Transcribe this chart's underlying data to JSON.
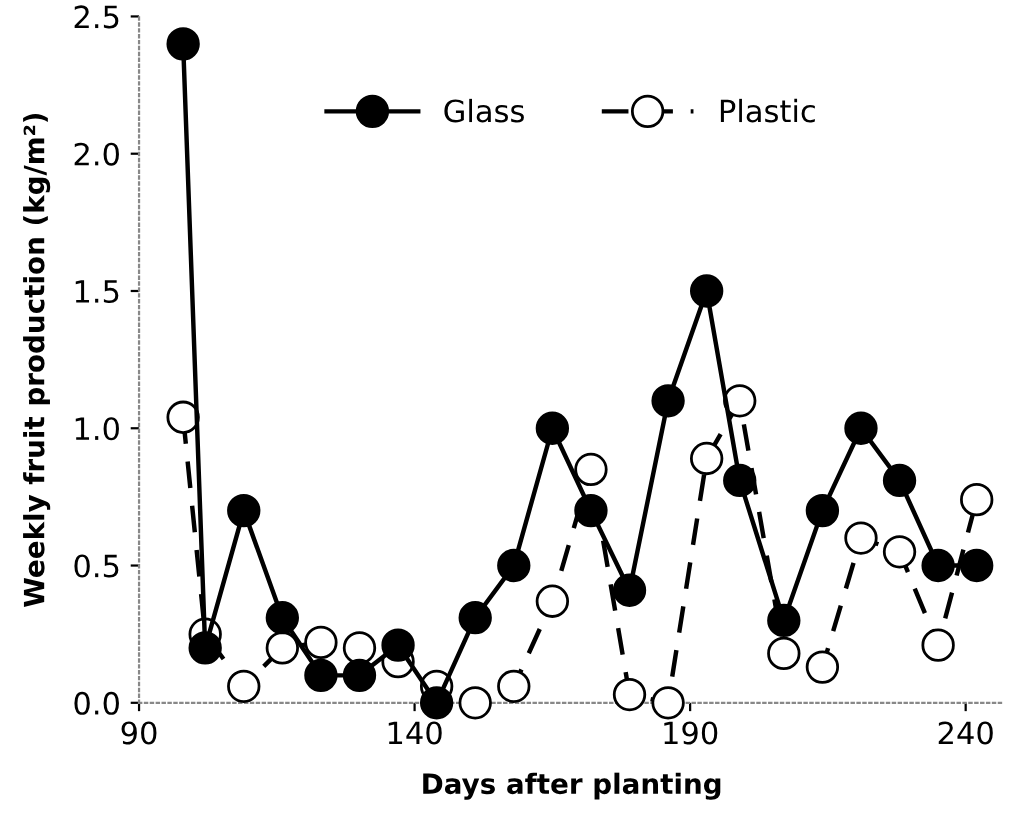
{
  "chart_data": {
    "type": "line",
    "xlabel": "Days after planting",
    "ylabel": "Weekly fruit production (kg/m²)",
    "x": [
      98,
      102,
      109,
      116,
      123,
      130,
      137,
      144,
      151,
      158,
      165,
      172,
      179,
      186,
      193,
      199,
      207,
      214,
      221,
      228,
      235,
      242
    ],
    "series": [
      {
        "name": "Glass",
        "color": "#000000",
        "marker": "circle",
        "line_style": "solid",
        "values": [
          2.4,
          0.2,
          0.7,
          0.31,
          0.1,
          0.1,
          0.21,
          0.0,
          0.31,
          0.5,
          1.0,
          0.7,
          0.41,
          1.1,
          1.5,
          0.81,
          0.3,
          0.7,
          1.0,
          0.81,
          0.5,
          0.5
        ]
      },
      {
        "name": "Plastic",
        "color": "#000000",
        "marker": "circle",
        "line_style": "dashed",
        "values": [
          1.04,
          0.25,
          0.06,
          0.2,
          0.22,
          0.2,
          0.15,
          0.06,
          0.0,
          0.06,
          0.37,
          0.85,
          0.03,
          0.0,
          0.89,
          1.1,
          0.18,
          0.13,
          0.6,
          0.55,
          0.21,
          0.74
        ]
      }
    ],
    "xlim": [
      90,
      247
    ],
    "xticks": [
      90,
      140,
      190,
      240
    ],
    "ylim": [
      0,
      2.5
    ],
    "yticks": [
      {
        "value": 0,
        "label": "0.0"
      },
      {
        "value": 0.5,
        "label": "0.5"
      },
      {
        "value": 1,
        "label": "1.0"
      },
      {
        "value": 1.5,
        "label": "1.5"
      },
      {
        "value": 2,
        "label": "2.0"
      },
      {
        "value": 2.5,
        "label": "2.5"
      }
    ],
    "grid": false,
    "legend": "top"
  }
}
